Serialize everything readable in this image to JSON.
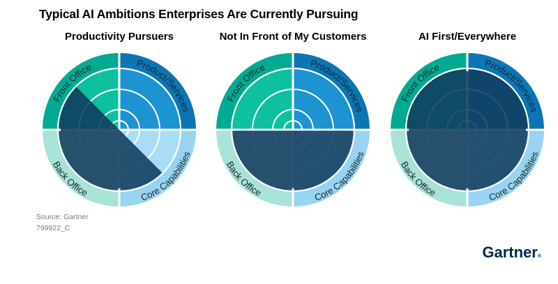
{
  "header": {
    "title": "Typical AI Ambitions Enterprises Are Currently Pursuing"
  },
  "footer": {
    "source": "Source: Gartner",
    "doc_id": "799922_C",
    "brand": "Gartner",
    "brand_mark": "®"
  },
  "colors": {
    "ring": [
      "#00AB91",
      "#0C76B4",
      "#A9E2D7",
      "#98D4F0"
    ],
    "inner": [
      "#0FC0A0",
      "#1E93D2",
      "#BFEADF",
      "#A9DDF6"
    ],
    "overlay": "#0F3A5C",
    "overlay_opacity": 0.87,
    "grid_line": "#FFFFFF",
    "label_text": "#17262F",
    "brand_navy": "#002856"
  },
  "chart_data": {
    "type": "radial-quadrant-ambition-diagrams",
    "quadrant_labels": [
      "Front Office",
      "Product/Services",
      "Back Office",
      "Core Capabilities"
    ],
    "quadrant_positions": [
      "top-left",
      "top-right",
      "bottom-left",
      "bottom-right"
    ],
    "grid_ring_radii": [
      13,
      29,
      58
    ],
    "diagrams": [
      {
        "title": "Productivity Pursuers",
        "coverage": "lower-left half: all of Back Office plus inner halves of Front Office and Core Capabilities",
        "overlay_arc_deg": [
          135,
          315
        ]
      },
      {
        "title": "Not In Front of My Customers",
        "coverage": "bottom half: Back Office and Core Capabilities",
        "overlay_arc_deg": [
          180,
          360
        ]
      },
      {
        "title": "AI First/Everywhere",
        "coverage": "full circle: all four quadrants",
        "overlay_arc_deg": [
          0,
          360
        ]
      }
    ]
  }
}
